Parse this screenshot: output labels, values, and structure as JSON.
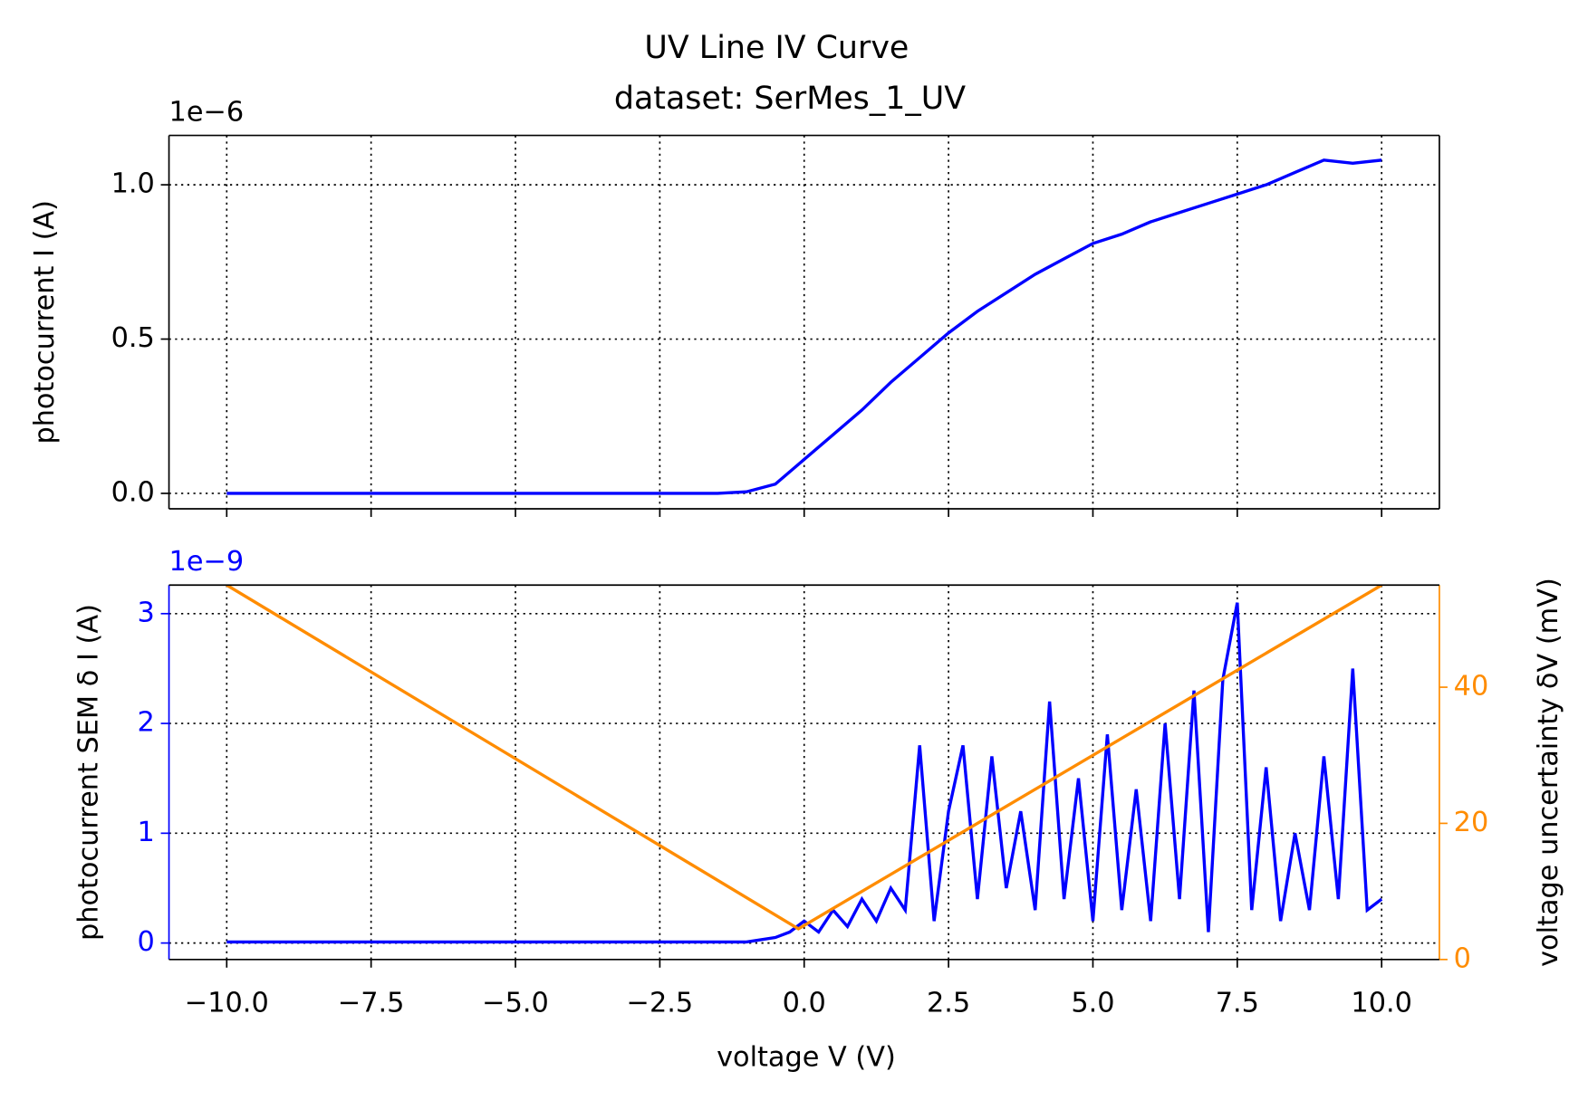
{
  "chart_data": [
    {
      "type": "line",
      "title": "UV Line IV Curve",
      "subtitle": "dataset: SerMes_1_UV",
      "ylabel": "photocurrent I (A)",
      "y_offset_label": "1e−6",
      "xlim": [
        -11,
        11
      ],
      "xticks": [
        -10,
        -7.5,
        -5,
        -2.5,
        0,
        2.5,
        5,
        7.5,
        10
      ],
      "ylim": [
        -0.05,
        1.16
      ],
      "yticks": [
        {
          "value": 0,
          "label": "0.0"
        },
        0.5,
        {
          "value": 1,
          "label": "1.0"
        }
      ],
      "grid": true,
      "series": [
        {
          "color": "#0000ff",
          "x": [
            -10,
            -9.5,
            -9,
            -8.5,
            -8,
            -7.5,
            -7,
            -6.5,
            -6,
            -5.5,
            -5,
            -4.5,
            -4,
            -3.5,
            -3,
            -2.5,
            -2,
            -1.5,
            -1,
            -0.5,
            0,
            0.5,
            1,
            1.5,
            2,
            2.5,
            3,
            3.5,
            4,
            4.5,
            5,
            5.5,
            6,
            6.5,
            7,
            7.5,
            8,
            8.5,
            9,
            9.5,
            10
          ],
          "values": [
            0,
            0,
            0,
            0,
            0,
            0,
            0,
            0,
            0,
            0,
            0,
            0,
            0,
            0,
            0,
            0,
            0,
            0,
            0.005,
            0.03,
            0.11,
            0.19,
            0.27,
            0.36,
            0.44,
            0.52,
            0.59,
            0.65,
            0.71,
            0.76,
            0.81,
            0.84,
            0.88,
            0.91,
            0.94,
            0.97,
            1.0,
            1.04,
            1.08,
            1.07,
            1.08
          ]
        }
      ]
    },
    {
      "type": "line",
      "xlabel": "voltage V (V)",
      "ylabel": "photocurrent SEM δ I (A)",
      "y_offset_label": "1e−9",
      "y2label": "voltage uncertainty δV (mV)",
      "xlim": [
        -11,
        11
      ],
      "xticks": [
        {
          "value": -10,
          "label": "−10.0"
        },
        {
          "value": -7.5,
          "label": "−7.5"
        },
        {
          "value": -5,
          "label": "−5.0"
        },
        {
          "value": -2.5,
          "label": "−2.5"
        },
        {
          "value": 0,
          "label": "0.0"
        },
        2.5,
        {
          "value": 5,
          "label": "5.0"
        },
        7.5,
        {
          "value": 10,
          "label": "10.0"
        }
      ],
      "ylim": [
        -0.15,
        3.26
      ],
      "yticks": [
        0,
        1,
        2,
        3
      ],
      "y_color": "#0000ff",
      "y2lim": [
        0,
        55
      ],
      "y2ticks": [
        0,
        20,
        40
      ],
      "y2_color": "#ff8c00",
      "grid": true,
      "series": [
        {
          "color": "#0000ff",
          "x": [
            -10,
            -5,
            -2,
            -1,
            -0.5,
            -0.25,
            0,
            0.25,
            0.5,
            0.75,
            1,
            1.25,
            1.5,
            1.75,
            2,
            2.25,
            2.5,
            2.75,
            3,
            3.25,
            3.5,
            3.75,
            4,
            4.25,
            4.5,
            4.75,
            5,
            5.25,
            5.5,
            5.75,
            6,
            6.25,
            6.5,
            6.75,
            7,
            7.25,
            7.5,
            7.75,
            8,
            8.25,
            8.5,
            8.75,
            9,
            9.25,
            9.5,
            9.75,
            10
          ],
          "values": [
            0.01,
            0.01,
            0.01,
            0.01,
            0.05,
            0.1,
            0.2,
            0.1,
            0.3,
            0.15,
            0.4,
            0.2,
            0.5,
            0.3,
            1.8,
            0.2,
            1.2,
            1.8,
            0.4,
            1.7,
            0.5,
            1.2,
            0.3,
            2.2,
            0.4,
            1.5,
            0.2,
            1.9,
            0.3,
            1.4,
            0.2,
            2.0,
            0.4,
            2.3,
            0.1,
            2.4,
            3.1,
            0.3,
            1.6,
            0.2,
            1.0,
            0.3,
            1.7,
            0.4,
            2.5,
            0.3,
            0.4
          ]
        },
        {
          "color": "#ff8c00",
          "axis": "y2",
          "x": [
            -10,
            -0.1,
            10
          ],
          "values": [
            55,
            4.5,
            55
          ]
        }
      ]
    }
  ]
}
